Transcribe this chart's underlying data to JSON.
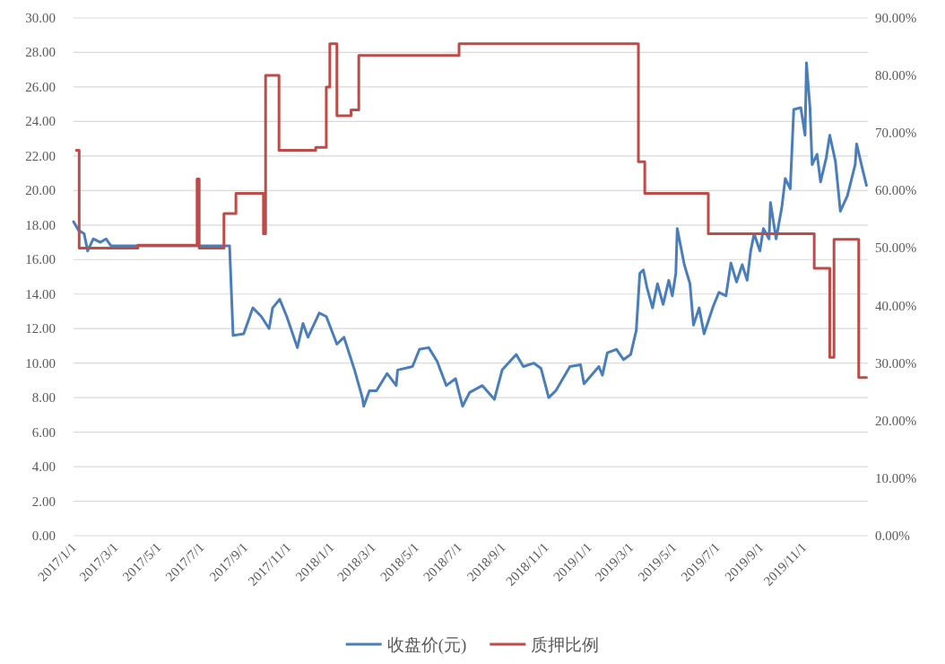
{
  "chart_data": {
    "type": "line",
    "grid": "y",
    "legend": "bottom",
    "xlim": [
      "2017-01-01",
      "2020-01-31"
    ],
    "xticks": [
      {
        "value": "2017-01-01",
        "label": "2017/1/1"
      },
      {
        "value": "2017-03-01",
        "label": "2017/3/1"
      },
      {
        "value": "2017-05-01",
        "label": "2017/5/1"
      },
      {
        "value": "2017-07-01",
        "label": "2017/7/1"
      },
      {
        "value": "2017-09-01",
        "label": "2017/9/1"
      },
      {
        "value": "2017-11-01",
        "label": "2017/11/1"
      },
      {
        "value": "2018-01-01",
        "label": "2018/1/1"
      },
      {
        "value": "2018-03-01",
        "label": "2018/3/1"
      },
      {
        "value": "2018-05-01",
        "label": "2018/5/1"
      },
      {
        "value": "2018-07-01",
        "label": "2018/7/1"
      },
      {
        "value": "2018-09-01",
        "label": "2018/9/1"
      },
      {
        "value": "2018-11-01",
        "label": "2018/11/1"
      },
      {
        "value": "2019-01-01",
        "label": "2019/1/1"
      },
      {
        "value": "2019-03-01",
        "label": "2019/3/1"
      },
      {
        "value": "2019-05-01",
        "label": "2019/5/1"
      },
      {
        "value": "2019-07-01",
        "label": "2019/7/1"
      },
      {
        "value": "2019-09-01",
        "label": "2019/9/1"
      },
      {
        "value": "2019-11-01",
        "label": "2019/11/1"
      }
    ],
    "ylim": [
      0,
      30
    ],
    "yticks": [
      {
        "value": 0,
        "label": "0.00"
      },
      {
        "value": 2,
        "label": "2.00"
      },
      {
        "value": 4,
        "label": "4.00"
      },
      {
        "value": 6,
        "label": "6.00"
      },
      {
        "value": 8,
        "label": "8.00"
      },
      {
        "value": 10,
        "label": "10.00"
      },
      {
        "value": 12,
        "label": "12.00"
      },
      {
        "value": 14,
        "label": "14.00"
      },
      {
        "value": 16,
        "label": "16.00"
      },
      {
        "value": 18,
        "label": "18.00"
      },
      {
        "value": 20,
        "label": "20.00"
      },
      {
        "value": 22,
        "label": "22.00"
      },
      {
        "value": 24,
        "label": "24.00"
      },
      {
        "value": 26,
        "label": "26.00"
      },
      {
        "value": 28,
        "label": "28.00"
      },
      {
        "value": 30,
        "label": "30.00"
      }
    ],
    "y2lim": [
      0,
      90
    ],
    "y2ticks": [
      {
        "value": 0,
        "label": "0.00%"
      },
      {
        "value": 10,
        "label": "10.00%"
      },
      {
        "value": 20,
        "label": "20.00%"
      },
      {
        "value": 30,
        "label": "30.00%"
      },
      {
        "value": 40,
        "label": "40.00%"
      },
      {
        "value": 50,
        "label": "50.00%"
      },
      {
        "value": 60,
        "label": "60.00%"
      },
      {
        "value": 70,
        "label": "70.00%"
      },
      {
        "value": 80,
        "label": "80.00%"
      },
      {
        "value": 90,
        "label": "90.00%"
      }
    ],
    "series": [
      {
        "name": "收盘价(元)",
        "type": "line",
        "color": "#4a7ebb",
        "x": [
          "2017-01-01",
          "2017-01-08",
          "2017-01-16",
          "2017-01-21",
          "2017-01-29",
          "2017-02-08",
          "2017-02-16",
          "2017-02-23",
          "2017-08-10",
          "2017-08-15",
          "2017-08-30",
          "2017-09-12",
          "2017-09-24",
          "2017-10-05",
          "2017-10-10",
          "2017-10-20",
          "2017-10-30",
          "2017-11-14",
          "2017-11-22",
          "2017-11-29",
          "2017-12-15",
          "2017-12-25",
          "2018-01-09",
          "2018-01-19",
          "2018-02-03",
          "2018-02-14",
          "2018-02-16",
          "2018-02-24",
          "2018-03-06",
          "2018-03-21",
          "2018-04-03",
          "2018-04-05",
          "2018-04-26",
          "2018-05-06",
          "2018-05-19",
          "2018-05-31",
          "2018-06-13",
          "2018-06-26",
          "2018-07-06",
          "2018-07-16",
          "2018-08-03",
          "2018-08-20",
          "2018-08-31",
          "2018-09-20",
          "2018-09-30",
          "2018-10-15",
          "2018-10-25",
          "2018-11-05",
          "2018-11-15",
          "2018-12-05",
          "2018-12-20",
          "2018-12-25",
          "2019-01-15",
          "2019-01-20",
          "2019-01-27",
          "2019-02-09",
          "2019-02-19",
          "2019-03-01",
          "2019-03-09",
          "2019-03-14",
          "2019-03-19",
          "2019-03-24",
          "2019-04-01",
          "2019-04-08",
          "2019-04-16",
          "2019-04-24",
          "2019-04-29",
          "2019-05-04",
          "2019-05-06",
          "2019-05-16",
          "2019-05-24",
          "2019-05-29",
          "2019-06-06",
          "2019-06-13",
          "2019-06-26",
          "2019-07-04",
          "2019-07-14",
          "2019-07-21",
          "2019-07-29",
          "2019-08-06",
          "2019-08-13",
          "2019-08-18",
          "2019-08-23",
          "2019-08-31",
          "2019-09-05",
          "2019-09-13",
          "2019-09-15",
          "2019-09-23",
          "2019-10-01",
          "2019-10-06",
          "2019-10-13",
          "2019-10-18",
          "2019-10-28",
          "2019-11-03",
          "2019-11-05",
          "2019-11-10",
          "2019-11-13",
          "2019-11-20",
          "2019-11-25",
          "2019-12-03",
          "2019-12-08",
          "2019-12-16",
          "2019-12-23",
          "2020-01-02",
          "2020-01-13",
          "2020-01-15",
          "2020-01-23",
          "2020-01-29"
        ],
        "values": [
          18.2,
          17.7,
          17.5,
          16.5,
          17.2,
          17.0,
          17.2,
          16.8,
          16.8,
          11.6,
          11.7,
          13.2,
          12.7,
          12.0,
          13.2,
          13.7,
          12.7,
          10.9,
          12.3,
          11.5,
          12.9,
          12.7,
          11.1,
          11.5,
          9.6,
          8.0,
          7.5,
          8.4,
          8.4,
          9.4,
          8.7,
          9.6,
          9.8,
          10.8,
          10.9,
          10.1,
          8.7,
          9.1,
          7.5,
          8.3,
          8.7,
          7.9,
          9.6,
          10.5,
          9.8,
          10.0,
          9.7,
          8.0,
          8.4,
          9.8,
          9.9,
          8.8,
          9.8,
          9.3,
          10.6,
          10.8,
          10.2,
          10.5,
          11.9,
          15.2,
          15.4,
          14.4,
          13.2,
          14.6,
          13.4,
          14.8,
          13.9,
          15.2,
          17.8,
          15.7,
          14.6,
          12.2,
          13.2,
          11.7,
          13.3,
          14.1,
          13.9,
          15.8,
          14.7,
          15.7,
          14.8,
          16.5,
          17.5,
          16.5,
          17.8,
          17.2,
          19.3,
          17.2,
          19.0,
          20.7,
          20.1,
          24.7,
          24.8,
          23.2,
          27.4,
          24.8,
          21.5,
          22.1,
          20.5,
          21.9,
          23.2,
          21.7,
          18.8,
          19.7,
          21.5,
          22.7,
          21.3,
          20.3
        ]
      },
      {
        "name": "质押比例",
        "type": "step",
        "axis": "y2",
        "color": "#be4b48",
        "x": [
          "2017-01-05",
          "2017-01-09",
          "2017-04-02",
          "2017-06-25",
          "2017-06-28",
          "2017-08-02",
          "2017-08-19",
          "2017-09-27",
          "2017-09-30",
          "2017-10-19",
          "2017-12-10",
          "2017-12-25",
          "2017-12-30",
          "2018-01-09",
          "2018-01-29",
          "2018-02-09",
          "2018-07-01",
          "2019-03-12",
          "2019-03-21",
          "2019-06-19",
          "2019-11-16",
          "2019-12-08",
          "2019-12-14",
          "2020-01-18",
          "2020-01-29"
        ],
        "values": [
          67,
          50,
          50.5,
          62,
          50,
          56,
          59.5,
          52.5,
          80,
          67,
          67.5,
          78,
          85.5,
          73,
          74,
          83.5,
          85.5,
          65,
          59.5,
          52.5,
          46.5,
          31,
          51.5,
          27.5,
          27.5
        ]
      }
    ]
  }
}
